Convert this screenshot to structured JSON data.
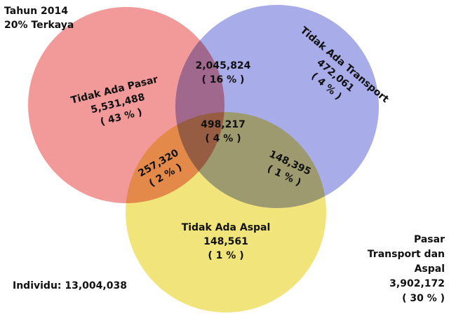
{
  "header": {
    "year": "Tahun 2014",
    "group": "20% Terkaya"
  },
  "regions": [
    {
      "label": "Tidak Ada Pasar",
      "count": "5,531,488",
      "percent": "( 43 % )"
    },
    {
      "count": "2,045,824",
      "percent": "( 16 % )"
    },
    {
      "label": "Tidak Ada Transport",
      "count": "472,061",
      "percent": "( 4 % )"
    },
    {
      "count": "498,217",
      "percent": "( 4 % )"
    },
    {
      "count": "257,320",
      "percent": "( 2 % )"
    },
    {
      "count": "148,395",
      "percent": "( 1 % )"
    },
    {
      "label": "Tidak Ada Aspal",
      "count": "148,561",
      "percent": "( 1 % )"
    }
  ],
  "total": "Individu: 13,004,038",
  "outside": {
    "lines": [
      "Pasar",
      "Transport dan",
      "Aspal"
    ],
    "count": "3,902,172",
    "percent": "( 30 % )"
  }
}
